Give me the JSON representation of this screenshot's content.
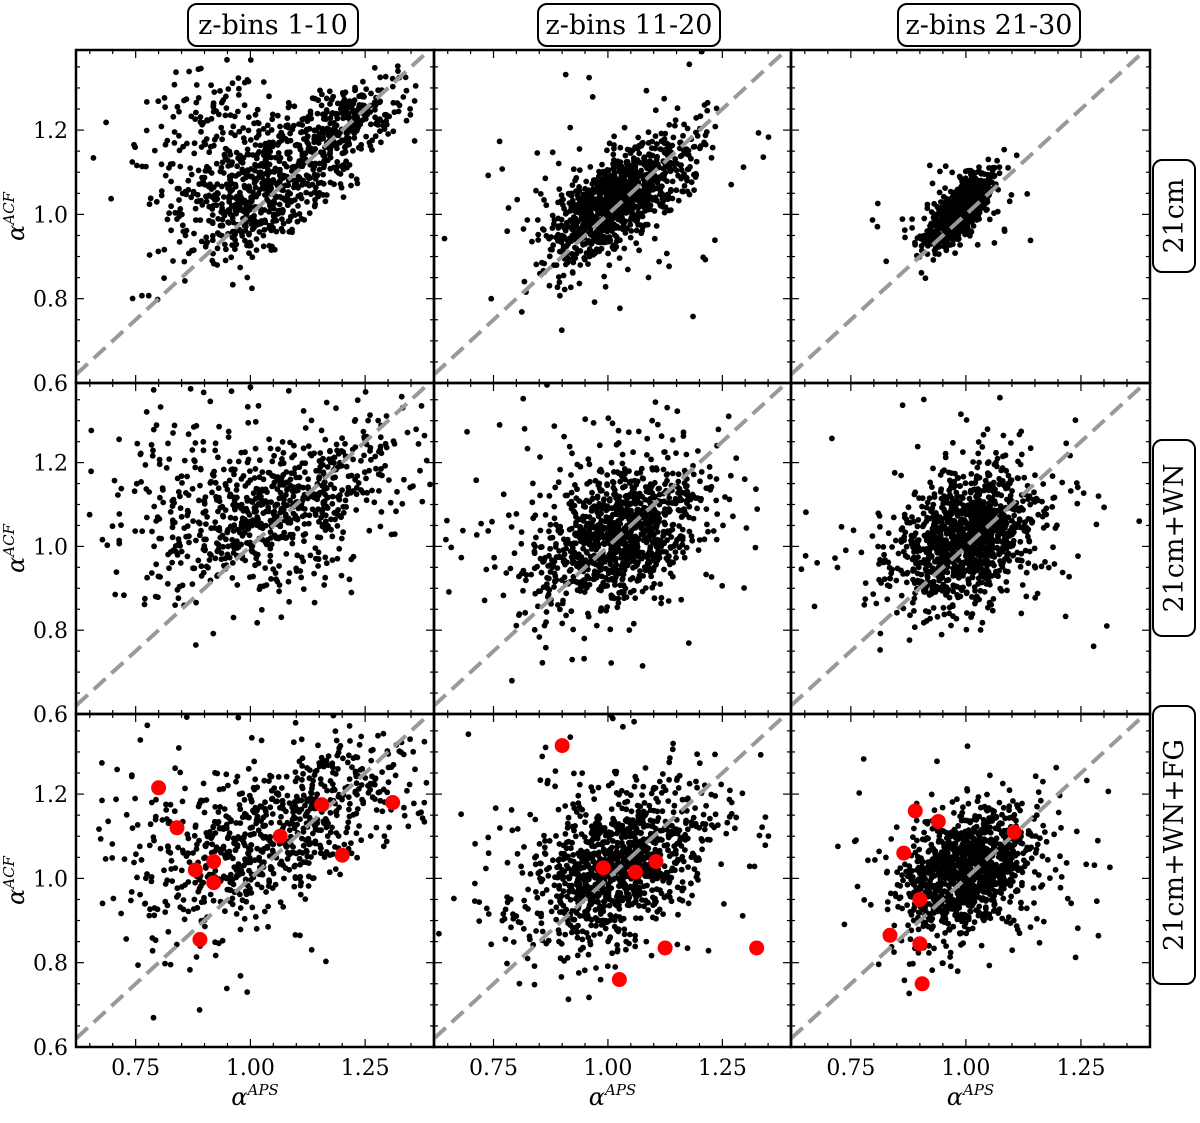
{
  "figure": {
    "column_titles": [
      "z-bins 1-10",
      "z-bins 11-20",
      "z-bins 21-30"
    ],
    "row_titles": [
      "21cm",
      "21cm+WN",
      "21cm+WN+FG"
    ],
    "xlabel_base": "α",
    "xlabel_sup": "APS",
    "ylabel_base": "α",
    "ylabel_sup": "ACF",
    "x_ticks": [
      "0.75",
      "1.00",
      "1.25"
    ],
    "y_ticks": [
      "0.6",
      "0.8",
      "1.0",
      "1.2"
    ]
  },
  "colors": {
    "points": "#000000",
    "highlight": "#ff0000",
    "diagonal": "#999999"
  },
  "chart_data": {
    "type": "scatter",
    "layout": "3x3 grid of scatter panels, shared axes",
    "xlabel": "α^APS",
    "ylabel": "α^ACF",
    "xlim": [
      0.62,
      1.4
    ],
    "ylim": [
      0.6,
      1.39
    ],
    "x_ticks": [
      0.75,
      1.0,
      1.25
    ],
    "y_ticks": [
      0.6,
      0.8,
      1.0,
      1.2
    ],
    "reference_line": "y = x (gray dashed)",
    "marker": "black dots (about 1000 per panel)",
    "panels": [
      {
        "row": "21cm",
        "column": "z-bins 1-10",
        "seed": 11,
        "n": 1000,
        "clusters": [
          {
            "w": 0.55,
            "mx": 1.03,
            "my": 1.06,
            "sx": 0.09,
            "sy": 0.085,
            "rho": 0.55
          },
          {
            "w": 0.25,
            "mx": 1.22,
            "my": 1.22,
            "sx": 0.06,
            "sy": 0.05,
            "rho": 0.4
          },
          {
            "w": 0.2,
            "mx": 0.92,
            "my": 1.18,
            "sx": 0.1,
            "sy": 0.1,
            "rho": 0.0
          }
        ]
      },
      {
        "row": "21cm",
        "column": "z-bins 11-20",
        "seed": 23,
        "n": 1100,
        "clusters": [
          {
            "w": 0.85,
            "mx": 1.02,
            "my": 1.03,
            "sx": 0.075,
            "sy": 0.07,
            "rho": 0.72
          },
          {
            "w": 0.15,
            "mx": 1.05,
            "my": 1.05,
            "sx": 0.14,
            "sy": 0.13,
            "rho": 0.25
          }
        ]
      },
      {
        "row": "21cm",
        "column": "z-bins 21-30",
        "seed": 37,
        "n": 1000,
        "clusters": [
          {
            "w": 0.92,
            "mx": 0.99,
            "my": 1.01,
            "sx": 0.03,
            "sy": 0.04,
            "rho": 0.72
          },
          {
            "w": 0.08,
            "mx": 0.98,
            "my": 0.99,
            "sx": 0.07,
            "sy": 0.07,
            "rho": 0.4
          }
        ]
      },
      {
        "row": "21cm+WN",
        "column": "z-bins 1-10",
        "seed": 41,
        "n": 800,
        "clusters": [
          {
            "w": 0.6,
            "mx": 1.04,
            "my": 1.08,
            "sx": 0.12,
            "sy": 0.1,
            "rho": 0.45
          },
          {
            "w": 0.25,
            "mx": 0.9,
            "my": 1.1,
            "sx": 0.13,
            "sy": 0.12,
            "rho": 0.1
          },
          {
            "w": 0.15,
            "mx": 1.22,
            "my": 1.17,
            "sx": 0.08,
            "sy": 0.08,
            "rho": 0.2
          }
        ]
      },
      {
        "row": "21cm+WN",
        "column": "z-bins 11-20",
        "seed": 53,
        "n": 1100,
        "clusters": [
          {
            "w": 0.8,
            "mx": 1.03,
            "my": 1.03,
            "sx": 0.09,
            "sy": 0.085,
            "rho": 0.5
          },
          {
            "w": 0.2,
            "mx": 1.0,
            "my": 1.05,
            "sx": 0.15,
            "sy": 0.13,
            "rho": 0.15
          }
        ]
      },
      {
        "row": "21cm+WN",
        "column": "z-bins 21-30",
        "seed": 67,
        "n": 1200,
        "clusters": [
          {
            "w": 0.85,
            "mx": 1.0,
            "my": 1.02,
            "sx": 0.07,
            "sy": 0.08,
            "rho": 0.35
          },
          {
            "w": 0.15,
            "mx": 1.0,
            "my": 1.0,
            "sx": 0.15,
            "sy": 0.12,
            "rho": 0.1
          }
        ]
      },
      {
        "row": "21cm+WN+FG",
        "column": "z-bins 1-10",
        "seed": 71,
        "n": 800,
        "clusters": [
          {
            "w": 0.6,
            "mx": 1.05,
            "my": 1.1,
            "sx": 0.11,
            "sy": 0.1,
            "rho": 0.5
          },
          {
            "w": 0.25,
            "mx": 0.9,
            "my": 1.05,
            "sx": 0.12,
            "sy": 0.13,
            "rho": 0.1
          },
          {
            "w": 0.15,
            "mx": 1.22,
            "my": 1.2,
            "sx": 0.08,
            "sy": 0.07,
            "rho": 0.2
          }
        ],
        "highlighted": [
          [
            0.8,
            1.215
          ],
          [
            0.84,
            1.12
          ],
          [
            0.88,
            1.02
          ],
          [
            0.92,
            1.04
          ],
          [
            0.92,
            0.99
          ],
          [
            0.89,
            0.855
          ],
          [
            1.065,
            1.1
          ],
          [
            1.155,
            1.175
          ],
          [
            1.2,
            1.055
          ],
          [
            1.31,
            1.18
          ]
        ]
      },
      {
        "row": "21cm+WN+FG",
        "column": "z-bins 11-20",
        "seed": 83,
        "n": 1100,
        "clusters": [
          {
            "w": 0.8,
            "mx": 1.02,
            "my": 1.03,
            "sx": 0.09,
            "sy": 0.09,
            "rho": 0.45
          },
          {
            "w": 0.2,
            "mx": 1.0,
            "my": 1.05,
            "sx": 0.16,
            "sy": 0.14,
            "rho": 0.1
          }
        ],
        "highlighted": [
          [
            0.9,
            1.315
          ],
          [
            0.99,
            1.025
          ],
          [
            1.06,
            1.015
          ],
          [
            1.105,
            1.04
          ],
          [
            1.125,
            0.835
          ],
          [
            1.025,
            0.76
          ],
          [
            1.325,
            0.835
          ]
        ]
      },
      {
        "row": "21cm+WN+FG",
        "column": "z-bins 21-30",
        "seed": 97,
        "n": 1200,
        "clusters": [
          {
            "w": 0.85,
            "mx": 1.0,
            "my": 1.02,
            "sx": 0.07,
            "sy": 0.075,
            "rho": 0.4
          },
          {
            "w": 0.15,
            "mx": 1.0,
            "my": 1.0,
            "sx": 0.15,
            "sy": 0.12,
            "rho": 0.1
          }
        ],
        "highlighted": [
          [
            0.89,
            1.16
          ],
          [
            0.94,
            1.135
          ],
          [
            0.865,
            1.06
          ],
          [
            1.105,
            1.11
          ],
          [
            0.9,
            0.95
          ],
          [
            0.835,
            0.865
          ],
          [
            0.9,
            0.845
          ],
          [
            0.905,
            0.75
          ]
        ]
      }
    ]
  }
}
